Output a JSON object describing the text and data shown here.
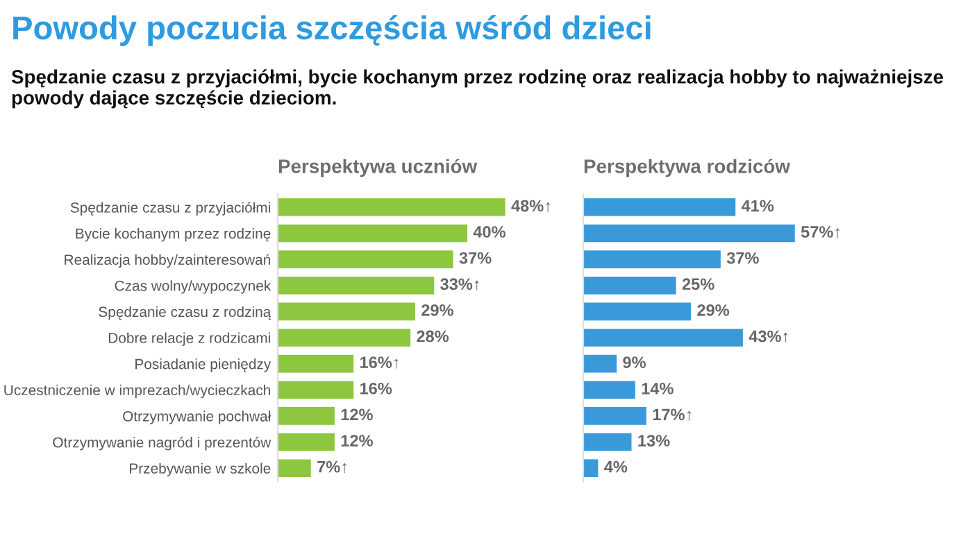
{
  "chart_data": [
    {
      "type": "bar",
      "orientation": "horizontal",
      "title": "Powody poczucia szczęścia wśród dzieci",
      "subtitle": "Spędzanie czasu z przyjaciółmi, bycie kochanym przez rodzinę oraz realizacja hobby to najważniejsze powody dające szczęście dzieciom.",
      "xlabel": "Perspektywa uczniów",
      "categories": [
        "Spędzanie czasu z przyjaciółmi",
        "Bycie kochanym przez rodzinę",
        "Realizacja hobby/zainteresowań",
        "Czas wolny/wypoczynek",
        "Spędzanie czasu z rodziną",
        "Dobre relacje z rodzicami",
        "Posiadanie pieniędzy",
        "Uczestniczenie w imprezach/wycieczkach",
        "Otrzymywanie pochwał",
        "Otrzymywanie nagród i prezentów",
        "Przebywanie w szkole"
      ],
      "values": [
        48,
        40,
        37,
        33,
        29,
        28,
        16,
        16,
        12,
        12,
        7
      ],
      "value_labels": [
        "48%↑",
        "40%",
        "37%",
        "33%↑",
        "29%",
        "28%",
        "16%↑",
        "16%",
        "12%",
        "12%",
        "7%↑"
      ],
      "color": "#8dc63f",
      "tick_labels": "y"
    },
    {
      "type": "bar",
      "orientation": "horizontal",
      "xlabel": "Perspektywa rodziców",
      "categories": [
        null,
        null,
        null,
        null,
        null,
        null,
        null,
        null,
        null,
        null,
        null
      ],
      "values": [
        41,
        57,
        37,
        25,
        29,
        43,
        9,
        14,
        17,
        13,
        4
      ],
      "value_labels": [
        "41%",
        "57%↑",
        "37%",
        "25%",
        "29%",
        "43%↑",
        "9%",
        "14%",
        "17%↑",
        "13%",
        "4%"
      ],
      "color": "#3a9ad9",
      "tick_labels": false
    }
  ]
}
